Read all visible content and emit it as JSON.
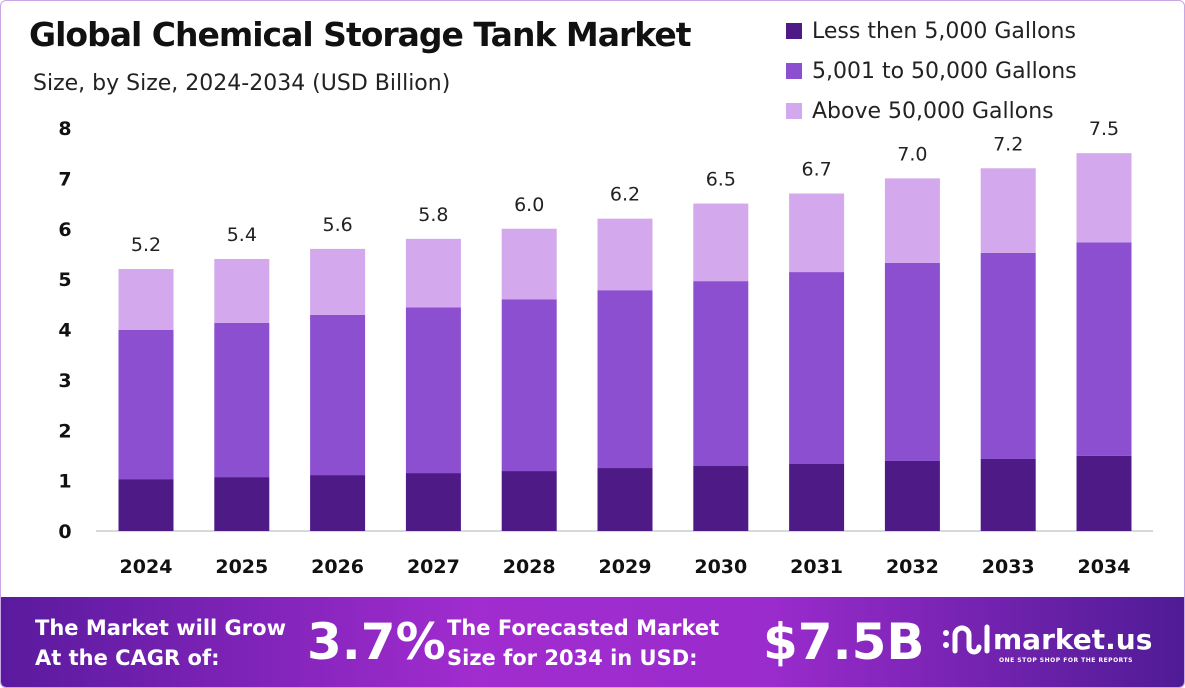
{
  "chart_data": {
    "type": "bar",
    "stacked": true,
    "title": "Global Chemical Storage Tank Market",
    "subtitle": "Size, by Size, 2024-2034 (USD Billion)",
    "categories": [
      "2024",
      "2025",
      "2026",
      "2027",
      "2028",
      "2029",
      "2030",
      "2031",
      "2032",
      "2033",
      "2034"
    ],
    "series": [
      {
        "name": "Less then 5,000 Gallons",
        "color": "#4e1a85",
        "values": [
          1.03,
          1.07,
          1.11,
          1.15,
          1.19,
          1.25,
          1.29,
          1.33,
          1.39,
          1.43,
          1.49
        ]
      },
      {
        "name": "5,001 to 50,000 Gallons",
        "color": "#8b4fcf",
        "values": [
          2.96,
          3.06,
          3.18,
          3.29,
          3.41,
          3.53,
          3.67,
          3.81,
          3.93,
          4.09,
          4.24
        ]
      },
      {
        "name": "Above 50,000 Gallons",
        "color": "#d3a8ec",
        "values": [
          1.21,
          1.27,
          1.31,
          1.36,
          1.4,
          1.42,
          1.54,
          1.56,
          1.68,
          1.68,
          1.77
        ]
      }
    ],
    "totals": [
      "5.2",
      "5.4",
      "5.6",
      "5.8",
      "6.0",
      "6.2",
      "6.5",
      "6.7",
      "7.0",
      "7.2",
      "7.5"
    ],
    "yticks": [
      "0",
      "1",
      "2",
      "3",
      "4",
      "5",
      "6",
      "7",
      "8"
    ],
    "ylim": [
      0,
      8
    ],
    "grid": false,
    "legend_position": "top-right"
  },
  "banner": {
    "cagr_label_1": "The Market will Grow",
    "cagr_label_2": "At the CAGR of:",
    "cagr_value": "3.7%",
    "forecast_label_1": "The Forecasted Market",
    "forecast_label_2": "Size for 2034 in USD:",
    "forecast_value": "$7.5B",
    "logo_text": "market.us",
    "logo_tagline": "ONE STOP SHOP FOR THE REPORTS"
  }
}
